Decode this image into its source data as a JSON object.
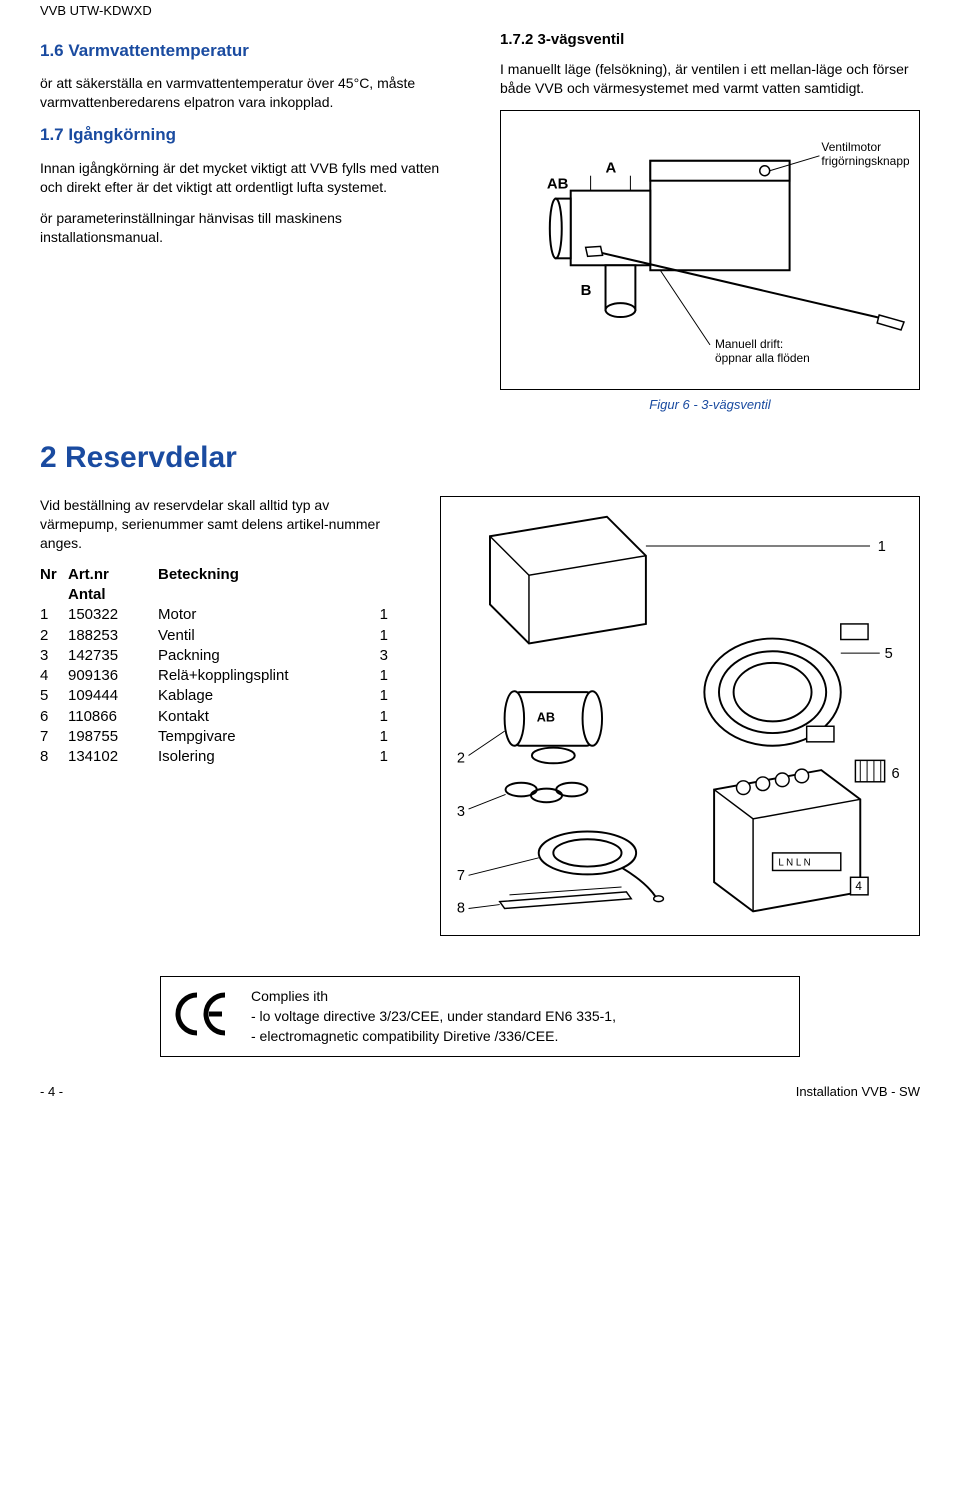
{
  "header": "VVB  UTW-KDWXD",
  "left_column": {
    "h1_6": "1.6  Varmvattentemperatur",
    "p1_6": "ör att säkerställa en varmvattentemperatur över  45°C, måste varmvattenberedarens elpatron vara inkopplad.",
    "h1_7": "1.7  Igångkörning",
    "p1_7a": "Innan igångkörning är det mycket viktigt att VVB fylls med vatten och direkt efter är det viktigt att ordentligt lufta systemet.",
    "p1_7b": "ör parameterinställningar hänvisas till maskinens installationsmanual."
  },
  "right_column": {
    "h1_7_2": "1.7.2  3-vägsventil",
    "p1_7_2": "I manuellt läge (felsökning), är ventilen i ett mellan-läge och förser både VVB och värmesystemet med varmt vatten samtidigt."
  },
  "figure6": {
    "label_ab": "AB",
    "label_a": "A",
    "label_b": "B",
    "label_motor": "Ventilmotor\nfrigörningsknapp",
    "label_manual": "Manuell drift:\nöppnar alla flöden",
    "caption": "Figur 6 - 3-vägsventil"
  },
  "section2": {
    "heading": "2  Reservdelar",
    "intro": "Vid beställning av reservdelar skall alltid typ av värmepump, serienummer samt delens artikel-nummer anges.",
    "table_headers": {
      "nr": "Nr",
      "artnr": "Art.nr",
      "antal": "Antal",
      "beteckning": "Beteckning"
    },
    "rows": [
      {
        "nr": "1",
        "artnr": "150322",
        "name": "Motor",
        "qty": "1"
      },
      {
        "nr": "2",
        "artnr": "188253",
        "name": "Ventil",
        "qty": "1"
      },
      {
        "nr": "3",
        "artnr": "142735",
        "name": "Packning",
        "qty": "3"
      },
      {
        "nr": "4",
        "artnr": "909136",
        "name": "Relä+kopplingsplint",
        "qty": "1"
      },
      {
        "nr": "5",
        "artnr": "109444",
        "name": "Kablage",
        "qty": "1"
      },
      {
        "nr": "6",
        "artnr": "110866",
        "name": "Kontakt",
        "qty": "1"
      },
      {
        "nr": "7",
        "artnr": "198755",
        "name": "Tempgivare",
        "qty": "1"
      },
      {
        "nr": "8",
        "artnr": "134102",
        "name": "Isolering",
        "qty": "1"
      }
    ]
  },
  "exploded_labels": [
    "1",
    "2",
    "3",
    "4",
    "5",
    "6",
    "7",
    "8"
  ],
  "ce": {
    "mark": "CE",
    "l1": "Complies  ith",
    "l2": "- lo  voltage directive  3/23/CEE, under standard EN6  335-1,",
    "l3": "- electromagnetic compatibility Diretive   /336/CEE."
  },
  "footer": {
    "left": "- 4 -",
    "right": "Installation VVB - SW"
  },
  "colors": {
    "heading_blue": "#1a4ba0"
  }
}
